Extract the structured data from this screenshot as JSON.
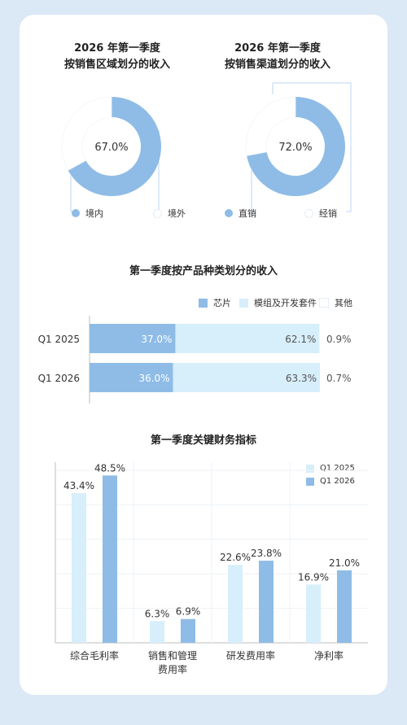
{
  "colors": {
    "background": "#dbe8f6",
    "card": "#ffffff",
    "dark_blue": "#8ebce6",
    "light_blue": "#d7eefb",
    "white_fill": "#ffffff",
    "guide_line": "#bcd6ef"
  },
  "chart_data": [
    {
      "type": "pie",
      "title_line1": "2026 年第一季度",
      "title_line2": "按销售区域划分的收入",
      "center_label": "67.0%",
      "slices": [
        {
          "name": "境内",
          "value": 67.0
        },
        {
          "name": "境外",
          "value": 33.0
        }
      ],
      "legend": [
        "境内",
        "境外"
      ]
    },
    {
      "type": "pie",
      "title_line1": "2026 年第一季度",
      "title_line2": "按销售渠道划分的收入",
      "center_label": "72.0%",
      "slices": [
        {
          "name": "直销",
          "value": 72.0
        },
        {
          "name": "经销",
          "value": 28.0
        }
      ],
      "legend": [
        "直销",
        "经销"
      ]
    },
    {
      "type": "bar",
      "orientation": "horizontal",
      "stacked": true,
      "title": "第一季度按产品种类划分的收入",
      "categories": [
        "Q1 2025",
        "Q1 2026"
      ],
      "series": [
        {
          "name": "芯片",
          "values": [
            37.0,
            36.0
          ],
          "labels": [
            "37.0%",
            "36.0%"
          ]
        },
        {
          "name": "模组及开发套件",
          "values": [
            62.1,
            63.3
          ],
          "labels": [
            "62.1%",
            "63.3%"
          ]
        },
        {
          "name": "其他",
          "values": [
            0.9,
            0.7
          ],
          "labels": [
            "0.9%",
            "0.7%"
          ]
        }
      ],
      "xlim": [
        0,
        100
      ]
    },
    {
      "type": "bar",
      "title": "第一季度关键财务指标",
      "categories": [
        "综合毛利率",
        "销售和管理\n费用率",
        "研发费用率",
        "净利率"
      ],
      "series": [
        {
          "name": "Q1 2025",
          "values": [
            43.4,
            6.3,
            22.6,
            16.9
          ],
          "labels": [
            "43.4%",
            "6.3%",
            "22.6%",
            "16.9%"
          ]
        },
        {
          "name": "Q1 2026",
          "values": [
            48.5,
            6.9,
            23.8,
            21.0
          ],
          "labels": [
            "48.5%",
            "6.9%",
            "23.8%",
            "21.0%"
          ]
        }
      ],
      "ylim": [
        0,
        50
      ],
      "grid": true,
      "legend_position": "top-right"
    }
  ]
}
